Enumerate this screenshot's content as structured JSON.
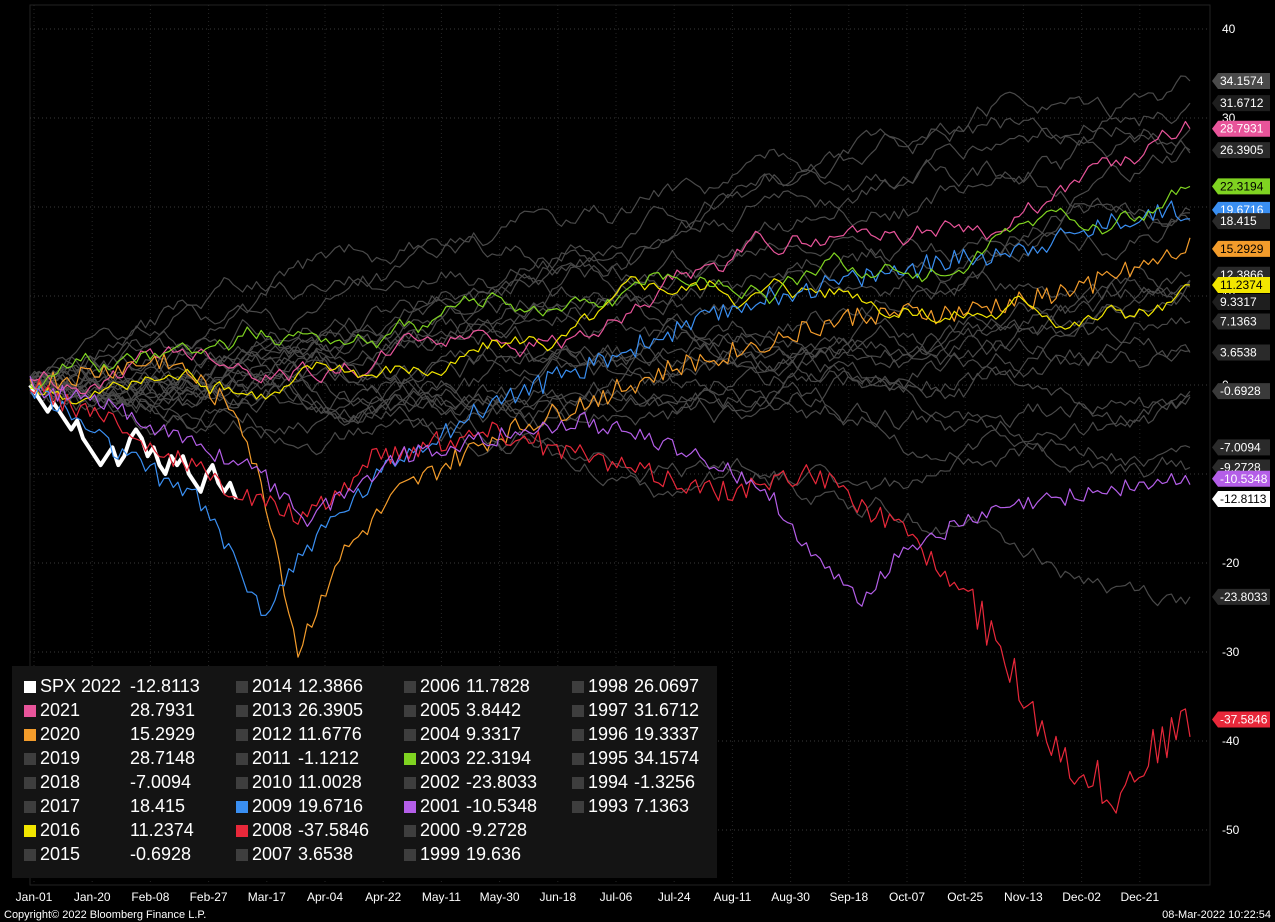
{
  "chart_data": {
    "type": "line",
    "title": "",
    "xlabel": "",
    "ylabel": "",
    "ylim": [
      -55,
      45
    ],
    "y_ticks": [
      40,
      30,
      20,
      10,
      0,
      -10,
      -20,
      -30,
      -40,
      -50
    ],
    "x_ticks": [
      "Jan-01",
      "Jan-20",
      "Feb-08",
      "Feb-27",
      "Mar-17",
      "Apr-04",
      "Apr-22",
      "May-11",
      "May-30",
      "Jun-18",
      "Jul-06",
      "Jul-24",
      "Aug-11",
      "Aug-30",
      "Sep-18",
      "Oct-07",
      "Oct-25",
      "Nov-13",
      "Dec-02",
      "Dec-21"
    ],
    "grid": true,
    "legend_position": "bottom-left",
    "background": "#000000",
    "series": [
      {
        "name": "SPX 2022",
        "final": "-12.8113",
        "color": "#ffffff",
        "partial": true
      },
      {
        "name": "2021",
        "final": "28.7931",
        "color": "#e8549a"
      },
      {
        "name": "2020",
        "final": "15.2929",
        "color": "#f39c2b"
      },
      {
        "name": "2019",
        "final": "28.7148",
        "color": "#4a4a4a"
      },
      {
        "name": "2018",
        "final": "-7.0094",
        "color": "#4a4a4a"
      },
      {
        "name": "2017",
        "final": "18.415",
        "color": "#4a4a4a"
      },
      {
        "name": "2016",
        "final": "11.2374",
        "color": "#f2e600"
      },
      {
        "name": "2015",
        "final": "-0.6928",
        "color": "#4a4a4a"
      },
      {
        "name": "2014",
        "final": "12.3866",
        "color": "#4a4a4a"
      },
      {
        "name": "2013",
        "final": "26.3905",
        "color": "#4a4a4a"
      },
      {
        "name": "2012",
        "final": "11.6776",
        "color": "#4a4a4a"
      },
      {
        "name": "2011",
        "final": "-1.1212",
        "color": "#4a4a4a"
      },
      {
        "name": "2010",
        "final": "11.0028",
        "color": "#4a4a4a"
      },
      {
        "name": "2009",
        "final": "19.6716",
        "color": "#3a8ff2"
      },
      {
        "name": "2008",
        "final": "-37.5846",
        "color": "#e8283a"
      },
      {
        "name": "2007",
        "final": "3.6538",
        "color": "#4a4a4a"
      },
      {
        "name": "2006",
        "final": "11.7828",
        "color": "#4a4a4a"
      },
      {
        "name": "2005",
        "final": "3.8442",
        "color": "#4a4a4a"
      },
      {
        "name": "2004",
        "final": "9.3317",
        "color": "#4a4a4a"
      },
      {
        "name": "2003",
        "final": "22.3194",
        "color": "#7fd321"
      },
      {
        "name": "2002",
        "final": "-23.8033",
        "color": "#4a4a4a"
      },
      {
        "name": "2001",
        "final": "-10.5348",
        "color": "#b45ee8"
      },
      {
        "name": "2000",
        "final": "-9.2728",
        "color": "#4a4a4a"
      },
      {
        "name": "1999",
        "final": "19.636",
        "color": "#4a4a4a"
      },
      {
        "name": "1998",
        "final": "26.0697",
        "color": "#4a4a4a"
      },
      {
        "name": "1997",
        "final": "31.6712",
        "color": "#4a4a4a"
      },
      {
        "name": "1996",
        "final": "19.3337",
        "color": "#4a4a4a"
      },
      {
        "name": "1995",
        "final": "34.1574",
        "color": "#4a4a4a"
      },
      {
        "name": "1994",
        "final": "-1.3256",
        "color": "#4a4a4a"
      },
      {
        "name": "1993",
        "final": "7.1363",
        "color": "#4a4a4a"
      }
    ],
    "right_labels": [
      {
        "text": "34.1574",
        "value": 34.1574,
        "bg": "#4a4a4a",
        "fg": "#ffffff"
      },
      {
        "text": "31.6712",
        "value": 31.6712,
        "bg": "#1e1e1e",
        "fg": "#ffffff"
      },
      {
        "text": "28.7931",
        "value": 28.7931,
        "bg": "#e8549a",
        "fg": "#ffffff"
      },
      {
        "text": "26.3905",
        "value": 26.3905,
        "bg": "#2a2a2a",
        "fg": "#ffffff"
      },
      {
        "text": "22.3194",
        "value": 22.3194,
        "bg": "#7fd321",
        "fg": "#000000"
      },
      {
        "text": "19.6716",
        "value": 19.6716,
        "bg": "#3a8ff2",
        "fg": "#ffffff"
      },
      {
        "text": "18.415",
        "value": 18.415,
        "bg": "#2a2a2a",
        "fg": "#ffffff"
      },
      {
        "text": "15.2929",
        "value": 15.2929,
        "bg": "#f39c2b",
        "fg": "#000000"
      },
      {
        "text": "12.3866",
        "value": 12.3866,
        "bg": "#2a2a2a",
        "fg": "#ffffff"
      },
      {
        "text": "11.2374",
        "value": 11.2374,
        "bg": "#f2e600",
        "fg": "#000000"
      },
      {
        "text": "9.3317",
        "value": 9.3317,
        "bg": "#1e1e1e",
        "fg": "#ffffff"
      },
      {
        "text": "7.1363",
        "value": 7.1363,
        "bg": "#2a2a2a",
        "fg": "#ffffff"
      },
      {
        "text": "3.6538",
        "value": 3.6538,
        "bg": "#2a2a2a",
        "fg": "#ffffff"
      },
      {
        "text": "-0.6928",
        "value": -0.6928,
        "bg": "#3a3a3a",
        "fg": "#ffffff"
      },
      {
        "text": "-7.0094",
        "value": -7.0094,
        "bg": "#2a2a2a",
        "fg": "#ffffff"
      },
      {
        "text": "-9.2728",
        "value": -9.2728,
        "bg": "#2a2a2a",
        "fg": "#ffffff"
      },
      {
        "text": "-10.5348",
        "value": -10.5348,
        "bg": "#b45ee8",
        "fg": "#ffffff"
      },
      {
        "text": "-12.8113",
        "value": -12.8113,
        "bg": "#ffffff",
        "fg": "#000000"
      },
      {
        "text": "-23.8033",
        "value": -23.8033,
        "bg": "#2a2a2a",
        "fg": "#ffffff"
      },
      {
        "text": "-37.5846",
        "value": -37.5846,
        "bg": "#e8283a",
        "fg": "#ffffff"
      }
    ]
  },
  "footer": {
    "copyright": "Copyright© 2022 Bloomberg Finance L.P.",
    "timestamp": "08-Mar-2022 10:22:54"
  }
}
